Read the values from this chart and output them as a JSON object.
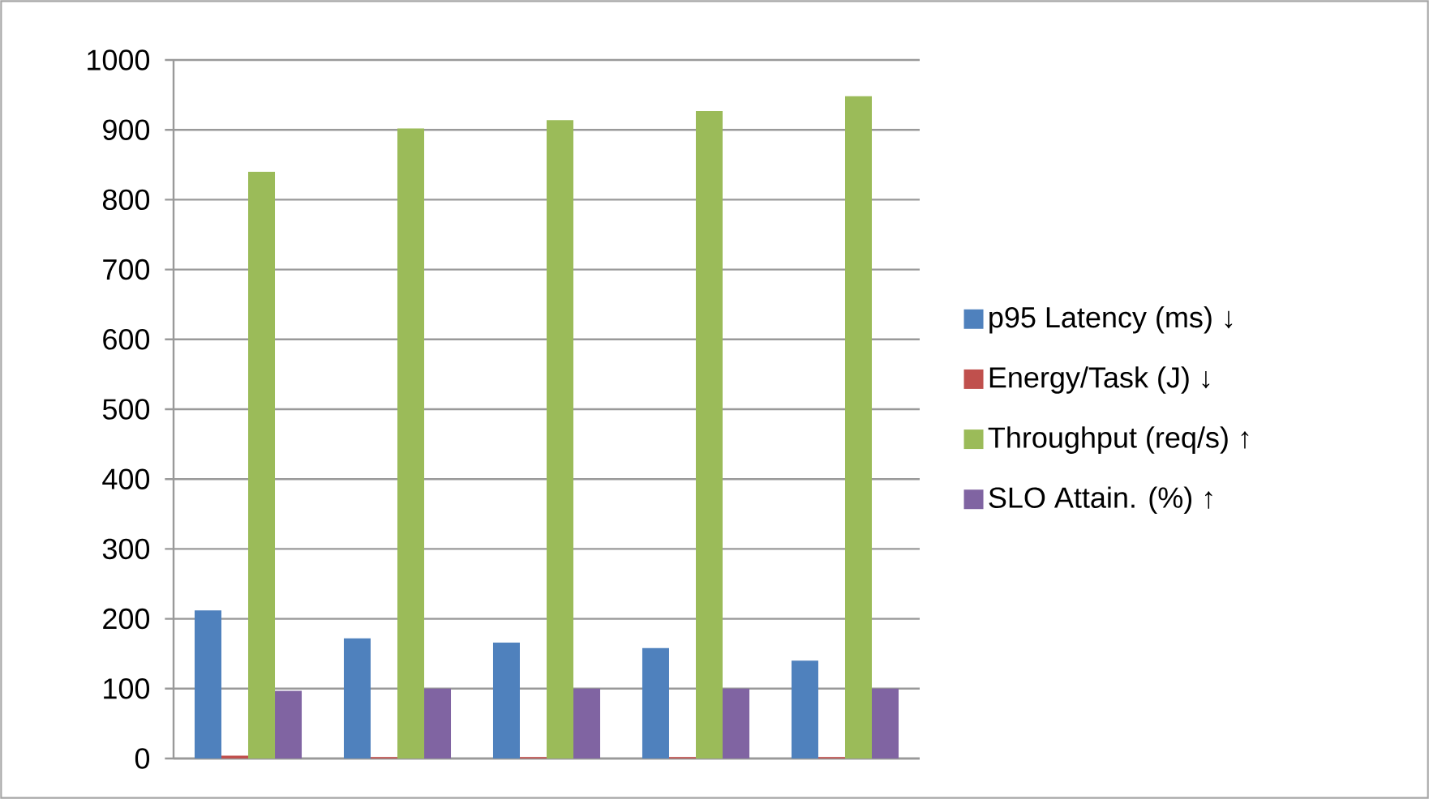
{
  "chart_data": {
    "type": "bar",
    "categories": [
      null,
      null,
      null,
      null,
      null
    ],
    "series": [
      {
        "name": "p95 Latency (ms) ↓",
        "color": "#4f81bd",
        "values": [
          212,
          172,
          166,
          158,
          140
        ]
      },
      {
        "name": "Energy/Task (J) ↓",
        "color": "#c0504d",
        "values": [
          4,
          2,
          2,
          2,
          2
        ]
      },
      {
        "name": "Throughput (req/s) ↑",
        "color": "#9bbb59",
        "values": [
          840,
          902,
          914,
          927,
          948
        ]
      },
      {
        "name": "SLO Attain. (%) ↑",
        "color": "#8064a2",
        "values": [
          97,
          100,
          100,
          100,
          100
        ]
      }
    ],
    "ylim": [
      0,
      1000
    ],
    "yticks": [
      0,
      100,
      200,
      300,
      400,
      500,
      600,
      700,
      800,
      900,
      1000
    ],
    "grid": "y",
    "legend": "right"
  }
}
